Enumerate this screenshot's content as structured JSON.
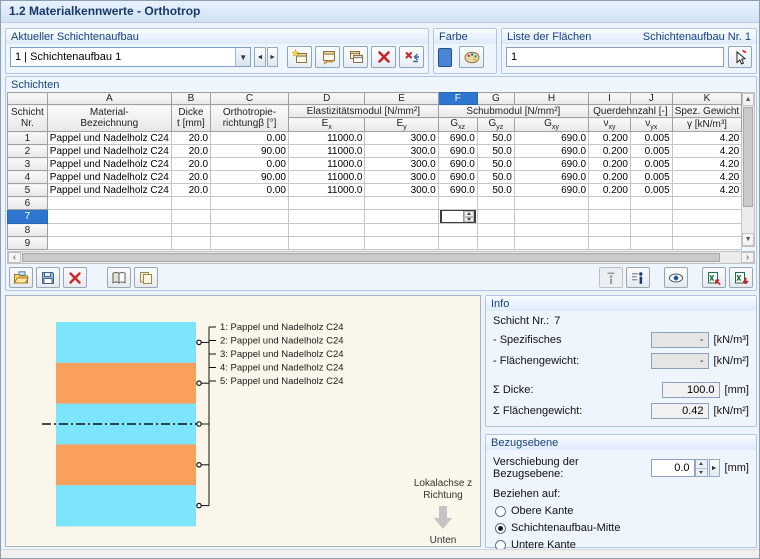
{
  "window": {
    "title": "1.2 Materialkennwerte - Orthotrop"
  },
  "layup": {
    "caption": "Aktueller Schichtenaufbau",
    "combo_value": "1 | Schichtenaufbau 1",
    "number_label": "Schichtenaufbau Nr. 1"
  },
  "farbe": {
    "caption": "Farbe",
    "swatch_color": "#4a86d8"
  },
  "flaechen": {
    "caption": "Liste der Flächen",
    "value": "1"
  },
  "schichten": {
    "caption": "Schichten",
    "corner_line1": "Schicht",
    "corner_line2": "Nr.",
    "letters": [
      "A",
      "B",
      "C",
      "D",
      "E",
      "F",
      "G",
      "H",
      "I",
      "J",
      "K"
    ],
    "selected_letter_index": 5,
    "header": {
      "a1": "Material-",
      "a2": "Bezeichnung",
      "b1": "Dicke",
      "b2": "t [mm]",
      "c1": "Orthotropie-",
      "c2": "richtungβ [°]",
      "de": "Elastizitätsmodul [N/mm²]",
      "fgh": "Schubmodul [N/mm²]",
      "ij": "Querdehnzahl [-]",
      "k1": "Spez. Gewicht"
    },
    "subs": [
      {
        "b": "E",
        "s": "x"
      },
      {
        "b": "E",
        "s": "y"
      },
      {
        "b": "G",
        "s": "xz"
      },
      {
        "b": "G",
        "s": "yz"
      },
      {
        "b": "G",
        "s": "xy"
      },
      {
        "b": "ν",
        "s": "xy"
      },
      {
        "b": "ν",
        "s": "yx"
      },
      {
        "b": "γ [kN/m³]",
        "s": ""
      }
    ],
    "rows": [
      {
        "nr": "1",
        "selected": false,
        "cells": [
          "Pappel und Nadelholz C24",
          "20.0",
          "0.00",
          "11000.0",
          "300.0",
          "690.0",
          "50.0",
          "690.0",
          "0.200",
          "0.005",
          "4.20"
        ]
      },
      {
        "nr": "2",
        "selected": false,
        "cells": [
          "Pappel und Nadelholz C24",
          "20.0",
          "90.00",
          "11000.0",
          "300.0",
          "690.0",
          "50.0",
          "690.0",
          "0.200",
          "0.005",
          "4.20"
        ]
      },
      {
        "nr": "3",
        "selected": false,
        "cells": [
          "Pappel und Nadelholz C24",
          "20.0",
          "0.00",
          "11000.0",
          "300.0",
          "690.0",
          "50.0",
          "690.0",
          "0.200",
          "0.005",
          "4.20"
        ]
      },
      {
        "nr": "4",
        "selected": false,
        "cells": [
          "Pappel und Nadelholz C24",
          "20.0",
          "90.00",
          "11000.0",
          "300.0",
          "690.0",
          "50.0",
          "690.0",
          "0.200",
          "0.005",
          "4.20"
        ]
      },
      {
        "nr": "5",
        "selected": false,
        "cells": [
          "Pappel und Nadelholz C24",
          "20.0",
          "0.00",
          "11000.0",
          "300.0",
          "690.0",
          "50.0",
          "690.0",
          "0.200",
          "0.005",
          "4.20"
        ]
      },
      {
        "nr": "6",
        "selected": false,
        "cells": [
          "",
          "",
          "",
          "",
          "",
          "",
          "",
          "",
          "",
          "",
          ""
        ]
      },
      {
        "nr": "7",
        "selected": true,
        "cells": [
          "",
          "",
          "",
          "",
          "",
          "",
          "",
          "",
          "",
          "",
          ""
        ]
      },
      {
        "nr": "8",
        "selected": false,
        "cells": [
          "",
          "",
          "",
          "",
          "",
          "",
          "",
          "",
          "",
          "",
          ""
        ]
      },
      {
        "nr": "9",
        "selected": false,
        "cells": [
          "",
          "",
          "",
          "",
          "",
          "",
          "",
          "",
          "",
          "",
          ""
        ]
      }
    ]
  },
  "diagram": {
    "layers": [
      {
        "label": "1: Pappel und Nadelholz C24",
        "color": "#7ce4fb"
      },
      {
        "label": "2: Pappel und Nadelholz C24",
        "color": "#f8a05c"
      },
      {
        "label": "3: Pappel und Nadelholz C24",
        "color": "#7ce4fb"
      },
      {
        "label": "4: Pappel und Nadelholz C24",
        "color": "#f8a05c"
      },
      {
        "label": "5: Pappel und Nadelholz C24",
        "color": "#7ce4fb"
      }
    ],
    "axis_line1": "Lokalachse z",
    "axis_line2": "Richtung",
    "axis_bottom": "Unten"
  },
  "info": {
    "caption": "Info",
    "layer_label": "Schicht Nr.:",
    "layer_value": "7",
    "rows": [
      {
        "label": "- Spezifisches",
        "value": "-",
        "unit": "[kN/m³]",
        "disabled": true,
        "gap": false
      },
      {
        "label": "- Flächengewicht:",
        "value": "-",
        "unit": "[kN/m²]",
        "disabled": true,
        "gap": false
      },
      {
        "label": "Σ Dicke:",
        "value": "100.0",
        "unit": "[mm]",
        "disabled": false,
        "gap": true
      },
      {
        "label": "Σ Flächengewicht:",
        "value": "0.42",
        "unit": "[kN/m²]",
        "disabled": false,
        "gap": false
      }
    ]
  },
  "bezugsebene": {
    "caption": "Bezugsebene",
    "shift_label": "Verschiebung der Bezugsebene:",
    "shift_value": "0.0",
    "shift_unit": "[mm]",
    "refer_label": "Beziehen auf:",
    "options": [
      {
        "label": "Obere Kante",
        "selected": false
      },
      {
        "label": "Schichtenaufbau-Mitte",
        "selected": true
      },
      {
        "label": "Untere Kante",
        "selected": false
      }
    ]
  }
}
